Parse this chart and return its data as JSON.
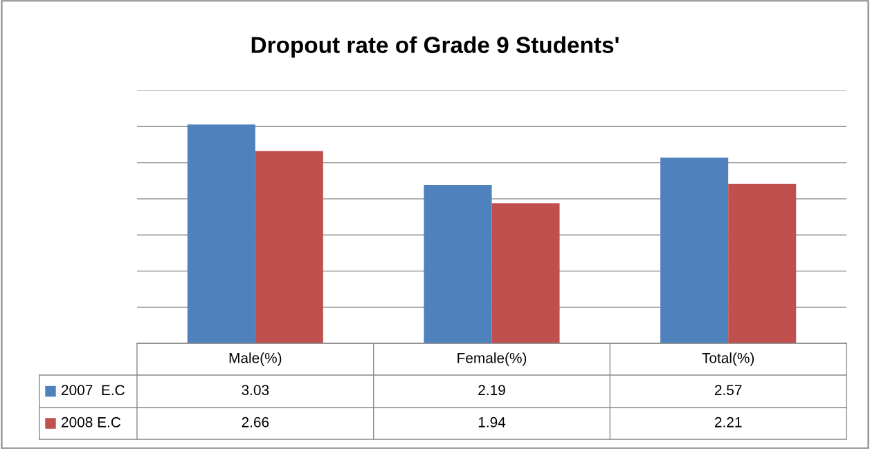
{
  "chart_data": {
    "type": "bar",
    "title": "Dropout rate of Grade 9 Students'",
    "categories": [
      "Male(%)",
      "Female(%)",
      "Total(%)"
    ],
    "series": [
      {
        "name": "2007  E.C",
        "color": "#4f81bd",
        "values": [
          3.03,
          2.19,
          2.57
        ]
      },
      {
        "name": "2008 E.C",
        "color": "#c0504d",
        "values": [
          2.66,
          1.94,
          2.21
        ]
      }
    ],
    "ylim": [
      0,
      3.5
    ],
    "yticks": [
      {
        "value": 0,
        "label": null
      },
      {
        "value": 0.5,
        "label": null
      },
      {
        "value": 1,
        "label": null
      },
      {
        "value": 1.5,
        "label": null
      },
      {
        "value": 2,
        "label": null
      },
      {
        "value": 2.5,
        "label": null
      },
      {
        "value": 3,
        "label": null
      },
      {
        "value": 3.5,
        "label": null
      }
    ],
    "grid": "y",
    "data_labels": true,
    "legend": "bottom left"
  }
}
